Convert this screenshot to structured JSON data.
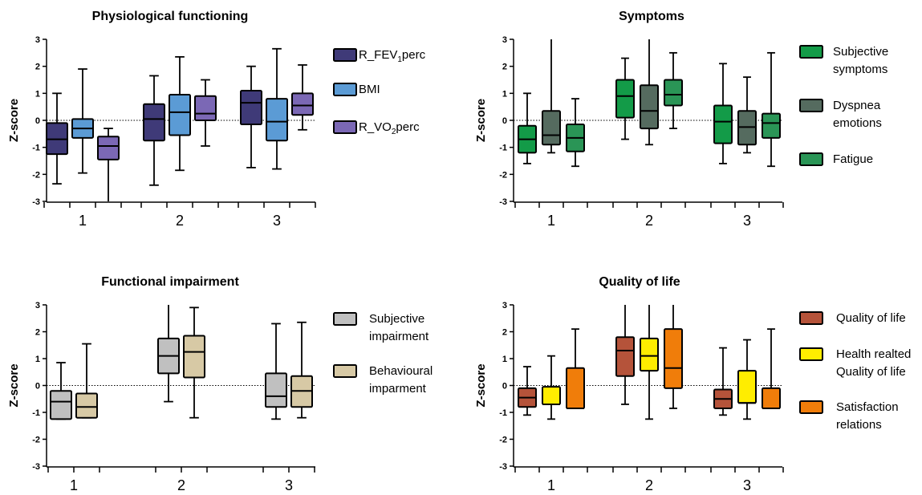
{
  "chart_data": [
    {
      "type": "box",
      "title": "Physiological functioning",
      "ylabel": "Z-score",
      "ylim": [
        -3,
        3
      ],
      "yticks": [
        "3",
        "2",
        "1",
        "0",
        "-1",
        "-2",
        "-3"
      ],
      "categories": [
        "1",
        "2",
        "3"
      ],
      "reference_line": 0,
      "series": [
        {
          "name": "R_FEV1perc",
          "color": "#3f3a78",
          "boxes": [
            {
              "min": -2.35,
              "q1": -1.25,
              "median": -0.7,
              "q3": -0.1,
              "max": 1.0
            },
            {
              "min": -2.4,
              "q1": -0.75,
              "median": 0.05,
              "q3": 0.6,
              "max": 1.65
            },
            {
              "min": -1.75,
              "q1": -0.15,
              "median": 0.65,
              "q3": 1.1,
              "max": 2.0
            }
          ]
        },
        {
          "name": "BMI",
          "color": "#5b9bd5",
          "boxes": [
            {
              "min": -1.95,
              "q1": -0.65,
              "median": -0.3,
              "q3": 0.05,
              "max": 1.9
            },
            {
              "min": -1.85,
              "q1": -0.55,
              "median": 0.3,
              "q3": 0.95,
              "max": 2.35
            },
            {
              "min": -1.8,
              "q1": -0.75,
              "median": -0.05,
              "q3": 0.8,
              "max": 2.65
            }
          ]
        },
        {
          "name": "R_VO2perc",
          "color": "#7b68b5",
          "boxes": [
            {
              "min": -3.0,
              "q1": -1.45,
              "median": -0.95,
              "q3": -0.6,
              "max": -0.3
            },
            {
              "min": -0.95,
              "q1": 0.0,
              "median": 0.25,
              "q3": 0.9,
              "max": 1.5
            },
            {
              "min": -0.35,
              "q1": 0.2,
              "median": 0.55,
              "q3": 1.0,
              "max": 2.05
            }
          ]
        }
      ],
      "legend": [
        {
          "prefix": "R_FEV",
          "sub": "1",
          "suffix": "perc"
        },
        {
          "prefix": "BMI",
          "sub": "",
          "suffix": ""
        },
        {
          "prefix": "R_VO",
          "sub": "2",
          "suffix": "perc"
        }
      ]
    },
    {
      "type": "box",
      "title": "Symptoms",
      "ylabel": "Z-score",
      "ylim": [
        -3,
        3
      ],
      "yticks": [
        "3",
        "2",
        "1",
        "0",
        "-1",
        "-2",
        "-3"
      ],
      "categories": [
        "1",
        "2",
        "3"
      ],
      "reference_line": 0,
      "series": [
        {
          "name": "Subjective symptoms",
          "color": "#139b48",
          "boxes": [
            {
              "min": -1.6,
              "q1": -1.2,
              "median": -0.7,
              "q3": -0.2,
              "max": 1.0
            },
            {
              "min": -0.7,
              "q1": 0.1,
              "median": 0.9,
              "q3": 1.5,
              "max": 2.3
            },
            {
              "min": -1.6,
              "q1": -0.85,
              "median": -0.05,
              "q3": 0.55,
              "max": 2.1
            }
          ]
        },
        {
          "name": "Dyspnea emotions",
          "color": "#556b5f",
          "boxes": [
            {
              "min": -1.2,
              "q1": -0.9,
              "median": -0.55,
              "q3": 0.35,
              "max": 3.0
            },
            {
              "min": -0.9,
              "q1": -0.3,
              "median": 0.35,
              "q3": 1.3,
              "max": 3.0
            },
            {
              "min": -1.2,
              "q1": -0.9,
              "median": -0.25,
              "q3": 0.35,
              "max": 1.6
            }
          ]
        },
        {
          "name": "Fatigue",
          "color": "#2a9556",
          "boxes": [
            {
              "min": -1.7,
              "q1": -1.15,
              "median": -0.65,
              "q3": -0.15,
              "max": 0.8
            },
            {
              "min": -0.3,
              "q1": 0.55,
              "median": 0.95,
              "q3": 1.5,
              "max": 2.5
            },
            {
              "min": -1.7,
              "q1": -0.65,
              "median": -0.1,
              "q3": 0.25,
              "max": 2.5
            }
          ]
        }
      ],
      "legend": [
        {
          "lines": [
            "Subjective",
            "symptoms"
          ]
        },
        {
          "lines": [
            "Dyspnea",
            "emotions"
          ]
        },
        {
          "lines": [
            "Fatigue"
          ]
        }
      ]
    },
    {
      "type": "box",
      "title": "Functional impairment",
      "ylabel": "Z-score",
      "ylim": [
        -3,
        3
      ],
      "yticks": [
        "3",
        "2",
        "1",
        "0",
        "-1",
        "-2",
        "-3"
      ],
      "categories": [
        "1",
        "2",
        "3"
      ],
      "reference_line": 0,
      "series": [
        {
          "name": "Subjective impairment",
          "color": "#c0c0c0",
          "boxes": [
            {
              "min": -1.25,
              "q1": -1.25,
              "median": -0.6,
              "q3": -0.2,
              "max": 0.85
            },
            {
              "min": -0.6,
              "q1": 0.45,
              "median": 1.1,
              "q3": 1.75,
              "max": 3.0
            },
            {
              "min": -1.25,
              "q1": -0.8,
              "median": -0.4,
              "q3": 0.45,
              "max": 2.3
            }
          ]
        },
        {
          "name": "Behavioural imparment",
          "color": "#d7c9a5",
          "boxes": [
            {
              "min": -1.2,
              "q1": -1.2,
              "median": -0.8,
              "q3": -0.3,
              "max": 1.55
            },
            {
              "min": -1.2,
              "q1": 0.3,
              "median": 1.25,
              "q3": 1.85,
              "max": 2.9
            },
            {
              "min": -1.2,
              "q1": -0.8,
              "median": -0.2,
              "q3": 0.35,
              "max": 2.35
            }
          ]
        }
      ],
      "legend": [
        {
          "lines": [
            "Subjective",
            "impairment"
          ]
        },
        {
          "lines": [
            "Behavioural",
            "imparment"
          ]
        }
      ]
    },
    {
      "type": "box",
      "title": "Quality of life",
      "ylabel": "Z-score",
      "ylim": [
        -3,
        3
      ],
      "yticks": [
        "3",
        "2",
        "1",
        "0",
        "-1",
        "-2",
        "-3"
      ],
      "categories": [
        "1",
        "2",
        "3"
      ],
      "reference_line": 0,
      "series": [
        {
          "name": "Quality of life",
          "color": "#b5533a",
          "boxes": [
            {
              "min": -1.1,
              "q1": -0.8,
              "median": -0.45,
              "q3": -0.1,
              "max": 0.7
            },
            {
              "min": -0.7,
              "q1": 0.35,
              "median": 1.3,
              "q3": 1.8,
              "max": 3.0
            },
            {
              "min": -1.1,
              "q1": -0.85,
              "median": -0.5,
              "q3": -0.15,
              "max": 1.4
            }
          ]
        },
        {
          "name": "Health realted Quality of life",
          "color": "#ffed00",
          "boxes": [
            {
              "min": -1.25,
              "q1": -0.7,
              "median": -0.7,
              "q3": -0.05,
              "max": 1.1
            },
            {
              "min": -1.25,
              "q1": 0.55,
              "median": 1.1,
              "q3": 1.75,
              "max": 3.0
            },
            {
              "min": -1.25,
              "q1": -0.65,
              "median": -0.65,
              "q3": 0.55,
              "max": 1.7
            }
          ]
        },
        {
          "name": "Satisfaction relations",
          "color": "#f07d0a",
          "boxes": [
            {
              "min": -0.85,
              "q1": -0.85,
              "median": -0.85,
              "q3": 0.65,
              "max": 2.1
            },
            {
              "min": -0.85,
              "q1": -0.1,
              "median": 0.65,
              "q3": 2.1,
              "max": 3.0
            },
            {
              "min": -0.85,
              "q1": -0.85,
              "median": -0.85,
              "q3": -0.1,
              "max": 2.1
            }
          ]
        }
      ],
      "legend": [
        {
          "lines": [
            "Quality of life"
          ]
        },
        {
          "lines": [
            "Health realted",
            "Quality of life"
          ]
        },
        {
          "lines": [
            "Satisfaction",
            "relations"
          ]
        }
      ]
    }
  ]
}
